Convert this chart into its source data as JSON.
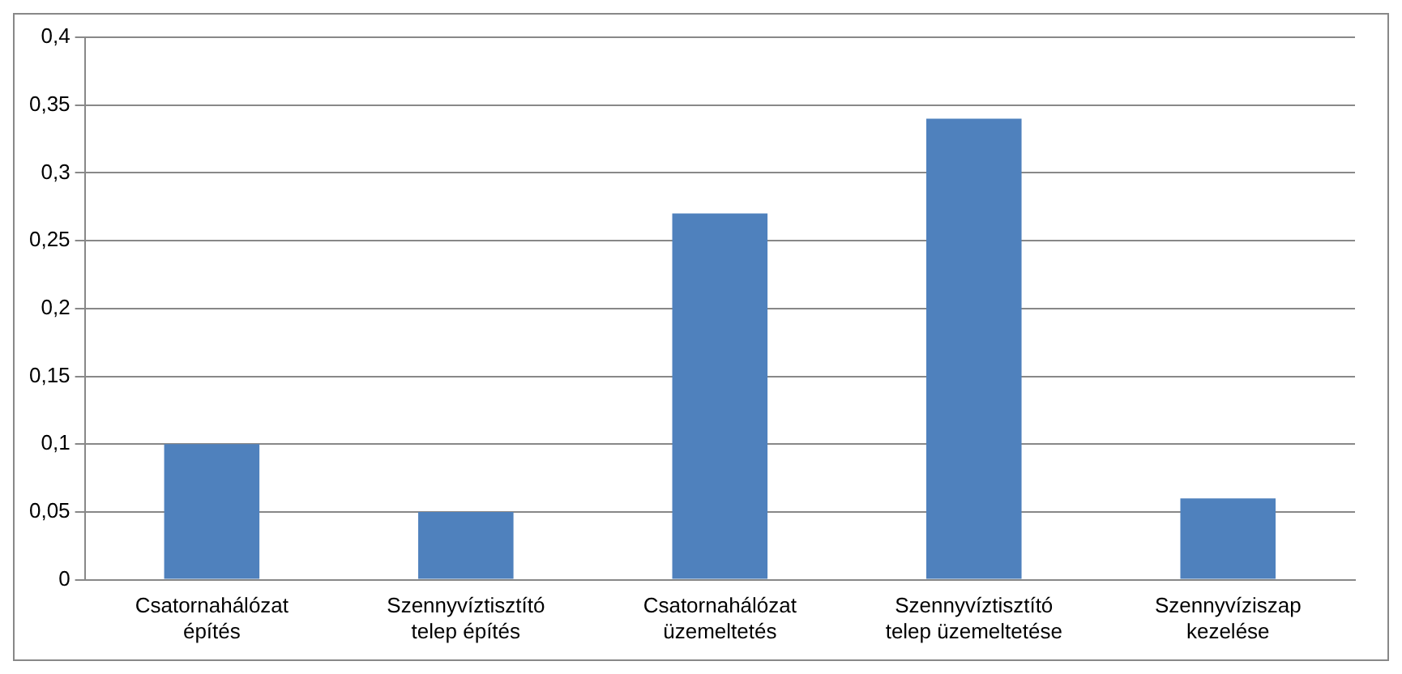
{
  "chart_data": {
    "type": "bar",
    "categories": [
      "Csatornahálózat építés",
      "Szennyvíztisztító telep építés",
      "Csatornahálózat üzemeltetés",
      "Szennyvíztisztító telep üzemeltetése",
      "Szennyvíziszap kezelése"
    ],
    "values": [
      0.1,
      0.05,
      0.27,
      0.34,
      0.06
    ],
    "color": "#4f81bd",
    "ylim": [
      0,
      0.4
    ],
    "yticks": [
      {
        "value": 0,
        "label": "0"
      },
      {
        "value": 0.05,
        "label": "0,05"
      },
      {
        "value": 0.1,
        "label": "0,1"
      },
      {
        "value": 0.15,
        "label": "0,15"
      },
      {
        "value": 0.2,
        "label": "0,2"
      },
      {
        "value": 0.25,
        "label": "0,25"
      },
      {
        "value": 0.3,
        "label": "0,3"
      },
      {
        "value": 0.35,
        "label": "0,35"
      },
      {
        "value": 0.4,
        "label": "0,4"
      }
    ],
    "grid": "y",
    "legend": false
  }
}
